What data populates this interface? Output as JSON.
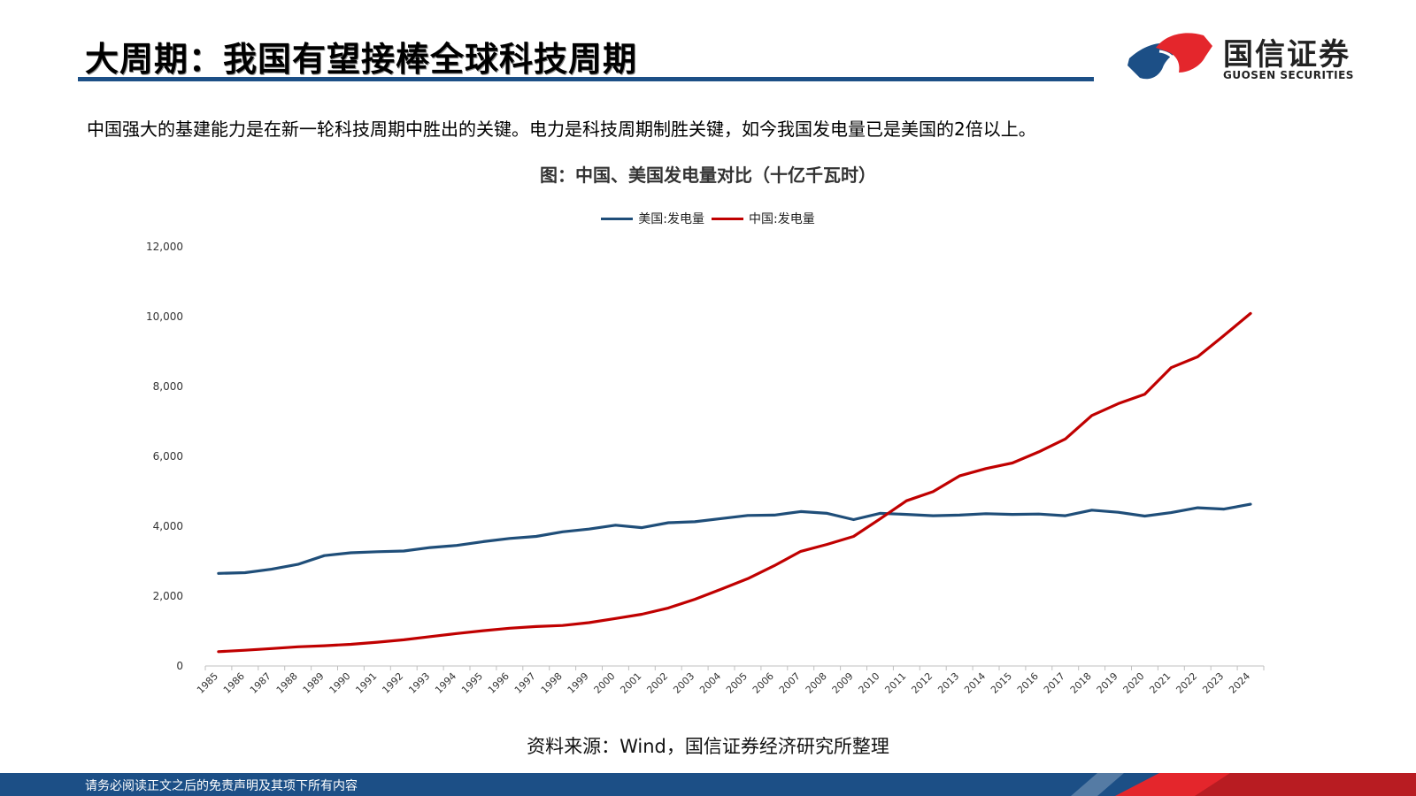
{
  "header": {
    "title": "大周期：我国有望接棒全球科技周期"
  },
  "brand": {
    "name_cn": "国信证券",
    "name_en": "GUOSEN SECURITIES",
    "colors": {
      "blue": "#1c4f86",
      "red": "#e4262c"
    }
  },
  "subtitle": "中国强大的基建能力是在新一轮科技周期中胜出的关键。电力是科技周期制胜关键，如今我国发电量已是美国的2倍以上。",
  "source": "资料来源：Wind，国信证券经济研究所整理",
  "footer": {
    "disclaimer": "请务必阅读正文之后的免责声明及其项下所有内容"
  },
  "chart_data": {
    "type": "line",
    "title": "图：中国、美国发电量对比（十亿千瓦时）",
    "xlabel": "",
    "ylabel": "",
    "ylim": [
      0,
      12000
    ],
    "y_ticks": [
      "0",
      "2,000",
      "4,000",
      "6,000",
      "8,000",
      "10,000",
      "12,000"
    ],
    "y_tick_values": [
      0,
      2000,
      4000,
      6000,
      8000,
      10000,
      12000
    ],
    "grid": false,
    "legend_position": "top-center",
    "categories": [
      "1985",
      "1986",
      "1987",
      "1988",
      "1989",
      "1990",
      "1991",
      "1992",
      "1993",
      "1994",
      "1995",
      "1996",
      "1997",
      "1998",
      "1999",
      "2000",
      "2001",
      "2002",
      "2003",
      "2004",
      "2005",
      "2006",
      "2007",
      "2008",
      "2009",
      "2010",
      "2011",
      "2012",
      "2013",
      "2014",
      "2015",
      "2016",
      "2017",
      "2018",
      "2019",
      "2020",
      "2021",
      "2022",
      "2023",
      "2024"
    ],
    "series": [
      {
        "name": "美国:发电量",
        "color": "#1f4e79",
        "values": [
          2650,
          2670,
          2770,
          2910,
          3160,
          3240,
          3270,
          3290,
          3390,
          3450,
          3560,
          3650,
          3710,
          3840,
          3920,
          4030,
          3960,
          4100,
          4130,
          4220,
          4310,
          4320,
          4420,
          4370,
          4190,
          4370,
          4340,
          4300,
          4320,
          4360,
          4340,
          4350,
          4300,
          4460,
          4400,
          4290,
          4390,
          4530,
          4490,
          4630
        ]
      },
      {
        "name": "中国:发电量",
        "color": "#c00000",
        "values": [
          410,
          450,
          500,
          550,
          580,
          620,
          680,
          750,
          840,
          930,
          1010,
          1080,
          1130,
          1160,
          1240,
          1360,
          1480,
          1660,
          1910,
          2200,
          2500,
          2870,
          3280,
          3480,
          3710,
          4210,
          4730,
          4990,
          5440,
          5650,
          5810,
          6130,
          6500,
          7170,
          7510,
          7780,
          8540,
          8850,
          9460,
          10090
        ]
      }
    ]
  }
}
